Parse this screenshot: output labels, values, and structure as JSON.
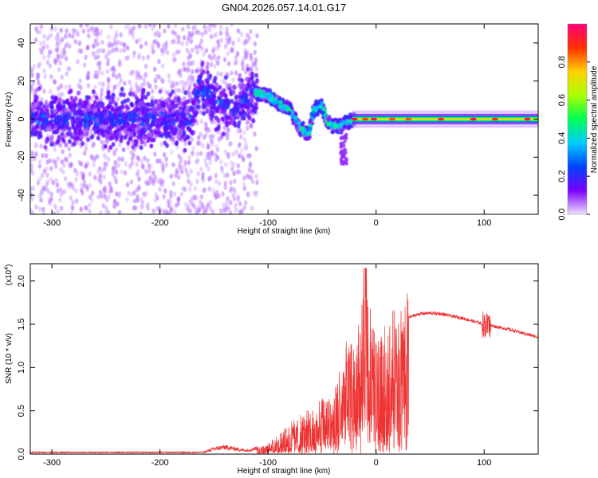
{
  "title": "GN04.2026.057.14.01.G17",
  "chart_data": [
    {
      "type": "heatmap",
      "xlabel": "Height of straight line (km)",
      "ylabel": "Frequency (Hz)",
      "xlim": [
        -320,
        150
      ],
      "ylim": [
        -50,
        50
      ],
      "xticks": [
        -300,
        -200,
        -100,
        0,
        100
      ],
      "yticks": [
        -40,
        -20,
        0,
        20,
        40
      ],
      "colorbar": {
        "label": "Normalized spectral amplitude",
        "range": [
          0,
          1
        ],
        "ticks": [
          "0.0",
          "0.2",
          "0.4",
          "0.6",
          "0.8"
        ],
        "tick_values": [
          0.0,
          0.2,
          0.4,
          0.6,
          0.8
        ],
        "colors": [
          "#f0e0ff",
          "#7a00ff",
          "#0044ff",
          "#00ccff",
          "#00ff55",
          "#aaff00",
          "#ffd000",
          "#ff3000",
          "#ff0077"
        ]
      },
      "ridge": {
        "x": [
          -320,
          -300,
          -250,
          -200,
          -170,
          -165,
          -150,
          -130,
          -115,
          -100,
          -90,
          -80,
          -70,
          -62,
          -58,
          -50,
          -45,
          -35,
          -25,
          -10,
          0,
          20,
          50,
          100,
          150
        ],
        "y": [
          0,
          0,
          0,
          0,
          0,
          18,
          10,
          5,
          15,
          12,
          8,
          5,
          -5,
          -8,
          5,
          7,
          -2,
          -4,
          -1,
          0,
          0,
          0,
          0,
          0,
          0
        ]
      }
    },
    {
      "type": "line",
      "xlabel": "Height of straight line (km)",
      "ylabel": "SNR (10 * v/v)",
      "yscale_note": "(x10",
      "yscale_exp": "4",
      "xlim": [
        -320,
        150
      ],
      "ylim": [
        0,
        2.2
      ],
      "xticks": [
        -300,
        -200,
        -100,
        0,
        100
      ],
      "yticks": [
        "0.0",
        "0.5",
        "1.0",
        "1.5",
        "2.0"
      ],
      "ytick_values": [
        0.0,
        0.5,
        1.0,
        1.5,
        2.0
      ],
      "series_color": "#ee3333",
      "envelope": {
        "x": [
          -320,
          -160,
          -150,
          -140,
          -120,
          -100,
          -80,
          -60,
          -50,
          -40,
          -30,
          -25,
          -20,
          -15,
          -10,
          0,
          10,
          20,
          30,
          40,
          50,
          60,
          80,
          100,
          120,
          150
        ],
        "y": [
          0.02,
          0.02,
          0.06,
          0.08,
          0.04,
          0.1,
          0.3,
          0.45,
          0.55,
          0.6,
          1.0,
          1.2,
          1.1,
          1.3,
          1.7,
          1.1,
          1.3,
          1.45,
          1.58,
          1.62,
          1.63,
          1.62,
          1.57,
          1.5,
          1.45,
          1.35
        ]
      }
    }
  ]
}
